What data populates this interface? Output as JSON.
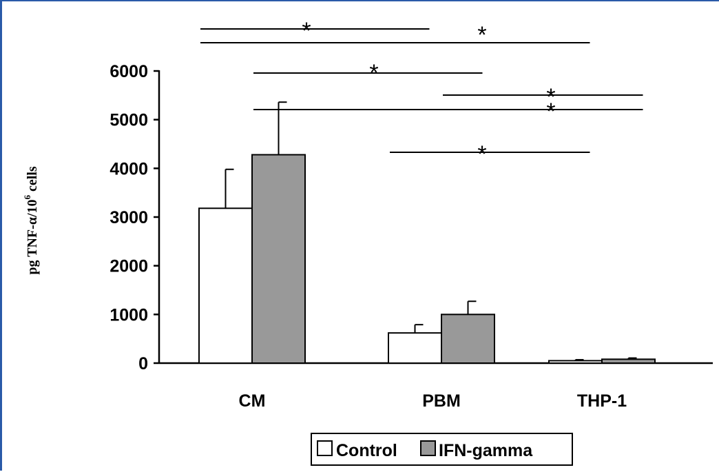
{
  "chart_data": {
    "type": "bar",
    "ylabel": "pg TNF-α/10",
    "ylabel_sup": "6",
    "ylabel_suffix": " cells",
    "categories": [
      "CM",
      "PBM",
      "THP-1"
    ],
    "series": [
      {
        "name": "Control",
        "values": [
          3180,
          620,
          50
        ],
        "errors": [
          800,
          170,
          20
        ],
        "color": "#ffffff"
      },
      {
        "name": "IFN-gamma",
        "values": [
          4280,
          1000,
          80
        ],
        "errors": [
          1080,
          270,
          25
        ],
        "color": "#999999"
      }
    ],
    "ylim": [
      0,
      6000
    ],
    "yticks": [
      "0",
      "1000",
      "2000",
      "3000",
      "4000",
      "5000",
      "6000"
    ],
    "legend": "bottom",
    "grid": false,
    "significance": [
      {
        "from": "CM Control",
        "to": "PBM Control",
        "label": "*"
      },
      {
        "from": "CM Control",
        "to": "THP-1 Control",
        "label": "*"
      },
      {
        "from": "PBM Control",
        "to": "THP-1 Control",
        "label": "*"
      },
      {
        "from": "CM IFN-gamma",
        "to": "PBM IFN-gamma",
        "label": "*"
      },
      {
        "from": "CM IFN-gamma",
        "to": "THP-1 IFN-gamma",
        "label": "*"
      },
      {
        "from": "PBM IFN-gamma",
        "to": "THP-1 IFN-gamma",
        "label": "*"
      }
    ]
  }
}
